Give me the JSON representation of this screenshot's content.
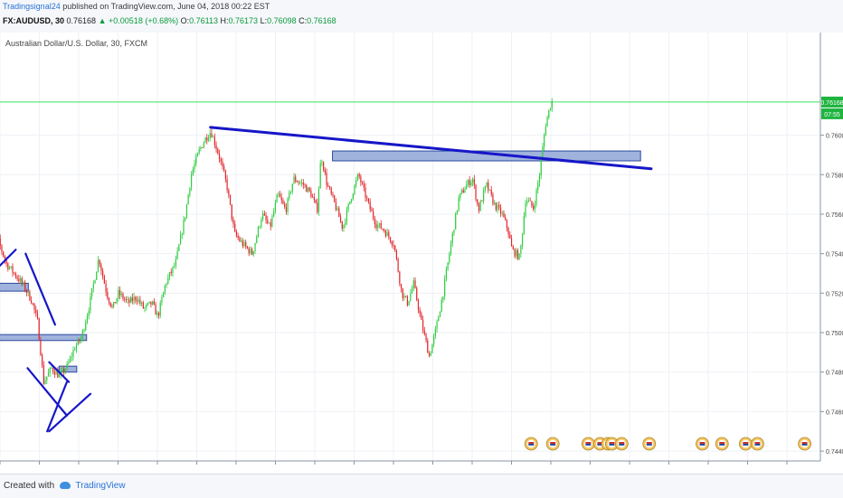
{
  "header": {
    "publisher": "Tradingsignal24",
    "published_text": "published on TradingView.com, June 04, 2018 00:22 EST",
    "symbol": "FX:AUDUSD, 30",
    "last": "0.76168",
    "change": "+0.00518 (+0.68%)",
    "o_label": "O:",
    "o": "0.76113",
    "h_label": "H:",
    "h": "0.76173",
    "l_label": "L:",
    "l": "0.76098",
    "c_label": "C:",
    "c": "0.76168"
  },
  "footer": {
    "created_with": "Created with",
    "brand": "TradingView"
  },
  "colors": {
    "up": "#2ecc40",
    "down": "#e0262b",
    "trendline": "#1616c8",
    "zone_fill": "#8fa6d6",
    "zone_stroke": "#2b4aa0",
    "price_line": "#3be35a"
  },
  "chart_data": {
    "type": "candlestick",
    "title": "Australian Dollar/U.S. Dollar, 30, FXCM",
    "x_ticks": [
      "15",
      "16",
      "17",
      "18",
      "21",
      "22",
      "23",
      "24",
      "25",
      "28",
      "29",
      "30",
      "31",
      "Jun",
      "4",
      "5",
      "6",
      "7",
      "8",
      "11",
      "12"
    ],
    "y_ticks": [
      "0.76000",
      "0.75800",
      "0.75600",
      "0.75400",
      "0.75200",
      "0.75000",
      "0.74800",
      "0.74600",
      "0.74400"
    ],
    "ylim": [
      0.7435,
      0.7652
    ],
    "xlim": [
      0,
      20.85
    ],
    "last_price_label": "0.76168",
    "countdown_label": "07:55",
    "path_x": [
      -0.35,
      -0.1,
      0.2,
      0.6,
      0.85,
      1.0,
      1.15,
      1.35,
      1.55,
      1.75,
      1.95,
      2.1,
      2.3,
      2.55,
      2.75,
      2.9,
      3.05,
      3.3,
      3.5,
      3.7,
      3.9,
      4.05,
      4.25,
      4.5,
      4.75,
      4.9,
      5.1,
      5.25,
      5.4,
      5.6,
      5.8,
      6.0,
      6.2,
      6.45,
      6.7,
      6.9,
      7.1,
      7.3,
      7.5,
      7.75,
      7.95,
      8.1,
      8.2,
      8.35,
      8.55,
      8.75,
      8.95,
      9.15,
      9.4,
      9.6,
      9.8,
      10.05,
      10.25,
      10.4,
      10.55,
      10.75,
      10.95,
      11.1,
      11.3,
      11.5,
      11.7,
      11.9,
      12.05,
      12.2,
      12.4,
      12.6,
      12.8,
      12.95,
      13.05,
      13.25,
      13.4,
      13.6,
      13.75,
      13.9,
      14.05
    ],
    "path_y": [
      0.7563,
      0.7552,
      0.7535,
      0.7525,
      0.7516,
      0.7505,
      0.7475,
      0.7482,
      0.7478,
      0.7483,
      0.7493,
      0.7497,
      0.7513,
      0.7538,
      0.752,
      0.7512,
      0.752,
      0.7515,
      0.7518,
      0.7512,
      0.7515,
      0.7508,
      0.7525,
      0.7535,
      0.756,
      0.758,
      0.7592,
      0.7598,
      0.7602,
      0.759,
      0.7575,
      0.755,
      0.7545,
      0.754,
      0.756,
      0.7553,
      0.757,
      0.7562,
      0.7578,
      0.7575,
      0.757,
      0.7562,
      0.759,
      0.7575,
      0.7565,
      0.7553,
      0.7568,
      0.758,
      0.7565,
      0.7555,
      0.7552,
      0.7545,
      0.752,
      0.7515,
      0.7525,
      0.7505,
      0.7488,
      0.75,
      0.752,
      0.7545,
      0.7568,
      0.7575,
      0.7578,
      0.7562,
      0.7575,
      0.7565,
      0.756,
      0.7552,
      0.7542,
      0.7538,
      0.7568,
      0.7563,
      0.758,
      0.7605,
      0.7617
    ],
    "candles": [
      [
        0,
        0.756,
        0.7566,
        0.7545,
        0.7552
      ]
    ],
    "overlays": {
      "trendlines": [
        {
          "x": [
            -0.4,
            0.4
          ],
          "y": [
            0.7526,
            0.7542
          ]
        },
        {
          "x": [
            0.65,
            1.4
          ],
          "y": [
            0.754,
            0.7504
          ]
        },
        {
          "x": [
            0.7,
            1.7
          ],
          "y": [
            0.7482,
            0.7458
          ]
        },
        {
          "x": [
            1.2,
            1.7
          ],
          "y": [
            0.745,
            0.7475
          ]
        },
        {
          "x": [
            1.25,
            1.75
          ],
          "y": [
            0.7485,
            0.7475
          ]
        },
        {
          "x": [
            1.25,
            2.3
          ],
          "y": [
            0.745,
            0.7469
          ]
        },
        {
          "x": [
            5.35,
            16.55
          ],
          "y": [
            0.7604,
            0.7583
          ]
        }
      ],
      "zones": [
        {
          "x": [
            -0.4,
            0.72
          ],
          "y": [
            0.7521,
            0.7525
          ]
        },
        {
          "x": [
            -0.4,
            2.2
          ],
          "y": [
            0.7496,
            0.7499
          ]
        },
        {
          "x": [
            1.5,
            1.95
          ],
          "y": [
            0.748,
            0.7483
          ]
        },
        {
          "x": [
            8.45,
            16.28
          ],
          "y": [
            0.7587,
            0.7592
          ]
        }
      ],
      "price_line": 0.76168
    },
    "event_markers": [
      13.5,
      14.05,
      14.95,
      15.25,
      15.45,
      15.55,
      15.8,
      16.5,
      17.85,
      18.35,
      18.95,
      19.25,
      20.45
    ]
  }
}
